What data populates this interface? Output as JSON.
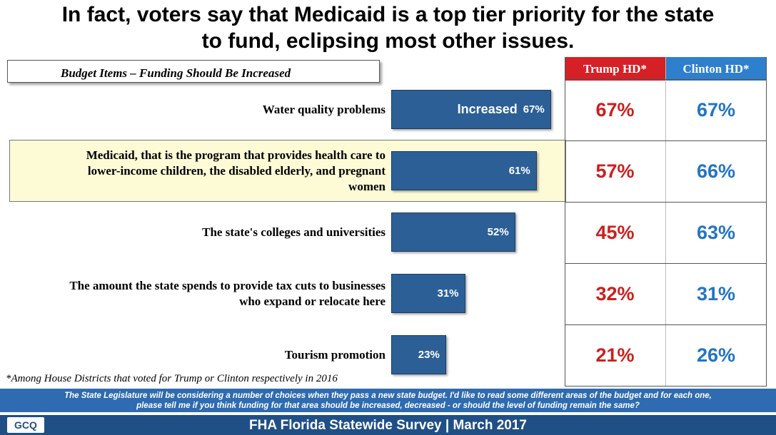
{
  "title_line1": "In fact, voters say that Medicaid is a top tier priority for the state",
  "title_line2": "to fund, eclipsing most other issues.",
  "subheading": "Budget Items – Funding Should Be Increased",
  "columns": {
    "trump": "Trump HD*",
    "clinton": "Clinton HD*"
  },
  "colors": {
    "bar": "#2b5f96",
    "trump": "#cc1f1f",
    "clinton": "#2374c4",
    "trump_header": "#d52026",
    "clinton_header": "#2e7fcc",
    "highlight": "#fcfbd6"
  },
  "chart_data": {
    "type": "bar",
    "orientation": "horizontal",
    "title": "Budget Items – Funding Should Be Increased",
    "series_label": "Increased",
    "categories": [
      "Water quality problems",
      "Medicaid, that is the program that provides health care to lower-income children, the disabled elderly, and pregnant women",
      "The state's colleges and universities",
      "The amount the state spends to provide tax cuts to businesses who expand or relocate here",
      "Tourism promotion"
    ],
    "values": [
      67,
      61,
      52,
      31,
      23
    ],
    "value_labels": [
      "67%",
      "61%",
      "52%",
      "31%",
      "23%"
    ],
    "xlim": [
      0,
      100
    ],
    "table": {
      "trump_hd": [
        "67%",
        "57%",
        "45%",
        "32%",
        "21%"
      ],
      "clinton_hd": [
        "67%",
        "66%",
        "63%",
        "31%",
        "26%"
      ]
    }
  },
  "row_labels": [
    [
      "Water quality problems"
    ],
    [
      "Medicaid, that is the program that provides health care to",
      "lower-income children, the disabled elderly, and pregnant",
      "women"
    ],
    [
      "The state's colleges and universities"
    ],
    [
      "The amount the state spends to provide tax cuts to businesses",
      "who expand or relocate here"
    ],
    [
      "Tourism promotion"
    ]
  ],
  "footnote": "*Among House Districts that voted for Trump or Clinton respectively in 2016",
  "question_line1": "The State Legislature will be considering a number of choices when they pass a new state budget. I'd like to read some different areas of the budget and for each one,",
  "question_line2": "please tell me if you think funding for that area should be increased, decreased - or should the level of funding remain the same?",
  "footer": "FHA Florida Statewide Survey | March 2017",
  "logo_text": "GCQ",
  "logo_icon": "gcq-logo"
}
